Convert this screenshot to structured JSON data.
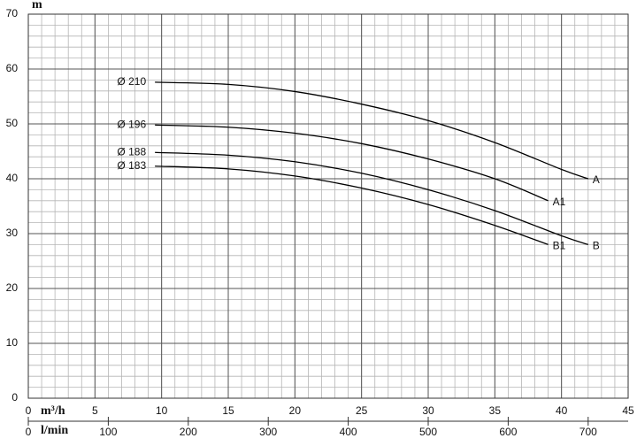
{
  "chart_data": {
    "type": "line",
    "y_label": "m",
    "x_label": "m³/h",
    "x2_label": "l/min",
    "xlim": [
      0,
      45
    ],
    "xticks": [
      0,
      5,
      10,
      15,
      20,
      25,
      30,
      35,
      40,
      45
    ],
    "ylim": [
      0,
      70
    ],
    "yticks": [
      0,
      10,
      20,
      30,
      40,
      50,
      60,
      70
    ],
    "x2lim": [
      0,
      750
    ],
    "x2ticks": [
      0,
      100,
      200,
      300,
      400,
      500,
      600,
      700
    ],
    "grid": true,
    "minor_grid_step": [
      1,
      2
    ],
    "series": [
      {
        "name": "Ø 210",
        "end_label": "A",
        "color": "#000000",
        "x": [
          9.5,
          15,
          20,
          25,
          30,
          35,
          40,
          42
        ],
        "values": [
          57.6,
          57.2,
          55.9,
          53.6,
          50.6,
          46.6,
          41.7,
          40
        ]
      },
      {
        "name": "Ø 196",
        "end_label": "A1",
        "color": "#000000",
        "x": [
          9.5,
          15,
          20,
          25,
          30,
          35,
          39
        ],
        "values": [
          49.8,
          49.4,
          48.3,
          46.4,
          43.6,
          40.0,
          36
        ]
      },
      {
        "name": "Ø 188",
        "end_label": "B",
        "color": "#000000",
        "x": [
          9.5,
          15,
          20,
          25,
          30,
          35,
          40,
          42
        ],
        "values": [
          44.8,
          44.3,
          43.1,
          41.0,
          38.0,
          34.2,
          29.6,
          28
        ]
      },
      {
        "name": "Ø 183",
        "end_label": "B1",
        "color": "#000000",
        "x": [
          9.5,
          15,
          20,
          25,
          30,
          35,
          39
        ],
        "values": [
          42.3,
          41.8,
          40.5,
          38.3,
          35.3,
          31.5,
          28
        ]
      }
    ]
  }
}
